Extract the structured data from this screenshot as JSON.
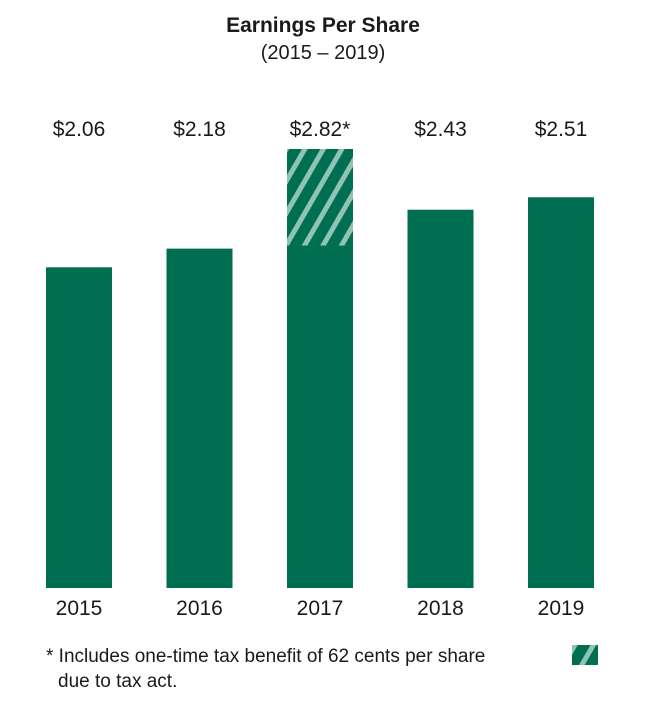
{
  "chart_data": {
    "type": "bar",
    "title": "Earnings Per Share",
    "subtitle": "(2015 – 2019)",
    "categories": [
      "2015",
      "2016",
      "2017",
      "2018",
      "2019"
    ],
    "values": [
      2.06,
      2.18,
      2.82,
      2.43,
      2.51
    ],
    "data_labels": [
      "$2.06",
      "$2.18",
      "$2.82*",
      "$2.43",
      "$2.51"
    ],
    "series": [
      {
        "values": [
          2.06,
          2.18,
          2.2,
          2.43,
          2.51
        ]
      },
      {
        "values": [
          0,
          0,
          0.62,
          0,
          0
        ]
      }
    ],
    "ylim": [
      0,
      2.82
    ],
    "stacked": true,
    "grid": false,
    "colors": {
      "bar": "#006E51",
      "hatch_stripe": "#8FC4B2"
    }
  },
  "footnote": {
    "line1": "* Includes one-time tax benefit of 62 cents per share",
    "line2": "due to tax act."
  }
}
